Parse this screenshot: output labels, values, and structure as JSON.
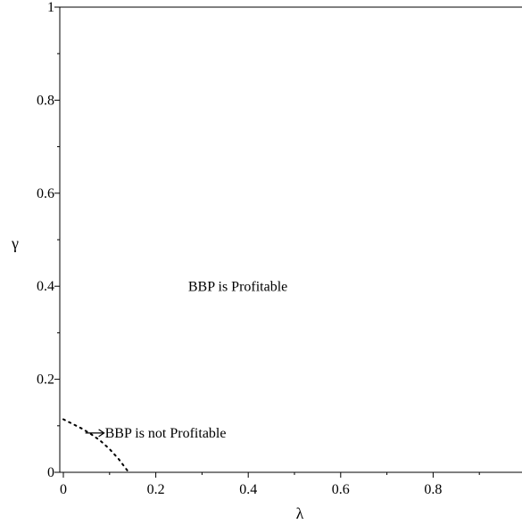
{
  "chart_data": {
    "type": "line",
    "xlabel": "λ",
    "ylabel": "γ",
    "xlim": [
      0,
      1
    ],
    "ylim": [
      0,
      1
    ],
    "x_ticks": [
      {
        "value": 0,
        "label": "0"
      },
      {
        "value": 0.2,
        "label": "0.2"
      },
      {
        "value": 0.4,
        "label": "0.4"
      },
      {
        "value": 0.6,
        "label": "0.6"
      },
      {
        "value": 0.8,
        "label": "0.8"
      }
    ],
    "y_ticks": [
      {
        "value": 0,
        "label": "0"
      },
      {
        "value": 0.2,
        "label": "0.2"
      },
      {
        "value": 0.4,
        "label": "0.4"
      },
      {
        "value": 0.6,
        "label": "0.6"
      },
      {
        "value": 0.8,
        "label": "0.8"
      },
      {
        "value": 1,
        "label": "1"
      }
    ],
    "grid": false,
    "legend": "none",
    "series": [
      {
        "style": "dotted",
        "color": "#000000",
        "x": [
          0,
          0.02,
          0.04,
          0.06,
          0.08,
          0.1,
          0.12,
          0.14
        ],
        "y": [
          0.114,
          0.104,
          0.094,
          0.082,
          0.068,
          0.05,
          0.028,
          0.002
        ]
      }
    ],
    "annotations": [
      {
        "id": "profitable",
        "text": "BBP is Profitable",
        "x": 0.27,
        "y": 0.39
      },
      {
        "id": "not-profitable",
        "text": "BBP is not Profitable",
        "x": 0.09,
        "y": 0.075,
        "arrow": true
      }
    ]
  }
}
